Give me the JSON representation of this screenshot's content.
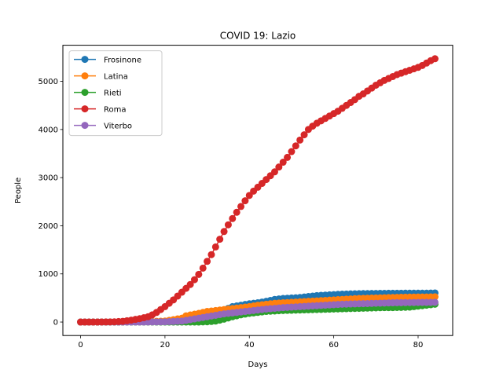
{
  "chart_data": {
    "type": "line",
    "title": "COVID 19: Lazio",
    "xlabel": "Days",
    "ylabel": "People",
    "xlim": [
      -4.2,
      88.2
    ],
    "ylim": [
      -280,
      5750
    ],
    "xticks": [
      0,
      20,
      40,
      60,
      80
    ],
    "yticks": [
      0,
      1000,
      2000,
      3000,
      4000,
      5000
    ],
    "grid": false,
    "legend_position": "top-left",
    "series": [
      {
        "name": "Frosinone",
        "color": "#1f77b4",
        "points": [
          [
            0,
            0
          ],
          [
            5,
            0
          ],
          [
            10,
            2
          ],
          [
            15,
            5
          ],
          [
            20,
            15
          ],
          [
            22,
            40
          ],
          [
            25,
            80
          ],
          [
            28,
            130
          ],
          [
            30,
            170
          ],
          [
            32,
            200
          ],
          [
            34,
            250
          ],
          [
            36,
            320
          ],
          [
            38,
            350
          ],
          [
            40,
            380
          ],
          [
            42,
            400
          ],
          [
            44,
            430
          ],
          [
            46,
            470
          ],
          [
            48,
            490
          ],
          [
            50,
            500
          ],
          [
            52,
            510
          ],
          [
            54,
            530
          ],
          [
            56,
            550
          ],
          [
            58,
            560
          ],
          [
            60,
            570
          ],
          [
            62,
            580
          ],
          [
            64,
            585
          ],
          [
            66,
            590
          ],
          [
            68,
            592
          ],
          [
            70,
            595
          ],
          [
            72,
            597
          ],
          [
            74,
            598
          ],
          [
            76,
            599
          ],
          [
            78,
            600
          ],
          [
            80,
            600
          ],
          [
            82,
            600
          ],
          [
            84,
            605
          ]
        ]
      },
      {
        "name": "Latina",
        "color": "#ff7f0e",
        "points": [
          [
            0,
            0
          ],
          [
            5,
            0
          ],
          [
            10,
            2
          ],
          [
            15,
            5
          ],
          [
            20,
            20
          ],
          [
            22,
            50
          ],
          [
            24,
            80
          ],
          [
            25,
            130
          ],
          [
            28,
            180
          ],
          [
            30,
            220
          ],
          [
            32,
            240
          ],
          [
            34,
            260
          ],
          [
            36,
            280
          ],
          [
            38,
            300
          ],
          [
            40,
            320
          ],
          [
            42,
            350
          ],
          [
            44,
            370
          ],
          [
            46,
            390
          ],
          [
            48,
            400
          ],
          [
            50,
            410
          ],
          [
            52,
            420
          ],
          [
            54,
            430
          ],
          [
            56,
            440
          ],
          [
            58,
            450
          ],
          [
            60,
            460
          ],
          [
            62,
            470
          ],
          [
            64,
            480
          ],
          [
            66,
            490
          ],
          [
            68,
            495
          ],
          [
            70,
            500
          ],
          [
            72,
            505
          ],
          [
            74,
            510
          ],
          [
            76,
            515
          ],
          [
            78,
            518
          ],
          [
            80,
            520
          ],
          [
            82,
            520
          ],
          [
            84,
            525
          ]
        ]
      },
      {
        "name": "Rieti",
        "color": "#2ca02c",
        "points": [
          [
            0,
            0
          ],
          [
            5,
            0
          ],
          [
            10,
            0
          ],
          [
            15,
            0
          ],
          [
            20,
            0
          ],
          [
            25,
            0
          ],
          [
            28,
            0
          ],
          [
            30,
            5
          ],
          [
            32,
            20
          ],
          [
            34,
            60
          ],
          [
            36,
            110
          ],
          [
            38,
            150
          ],
          [
            40,
            180
          ],
          [
            42,
            200
          ],
          [
            44,
            220
          ],
          [
            46,
            230
          ],
          [
            48,
            240
          ],
          [
            50,
            245
          ],
          [
            52,
            250
          ],
          [
            54,
            255
          ],
          [
            56,
            260
          ],
          [
            58,
            265
          ],
          [
            60,
            270
          ],
          [
            62,
            275
          ],
          [
            64,
            280
          ],
          [
            66,
            285
          ],
          [
            68,
            290
          ],
          [
            70,
            295
          ],
          [
            72,
            300
          ],
          [
            74,
            300
          ],
          [
            76,
            305
          ],
          [
            78,
            310
          ],
          [
            80,
            330
          ],
          [
            82,
            350
          ],
          [
            84,
            370
          ]
        ]
      },
      {
        "name": "Roma",
        "color": "#d62728",
        "points": [
          [
            0,
            0
          ],
          [
            2,
            0
          ],
          [
            4,
            0
          ],
          [
            6,
            2
          ],
          [
            8,
            5
          ],
          [
            10,
            15
          ],
          [
            12,
            40
          ],
          [
            14,
            70
          ],
          [
            15,
            90
          ],
          [
            16,
            110
          ],
          [
            17,
            150
          ],
          [
            18,
            200
          ],
          [
            19,
            260
          ],
          [
            20,
            320
          ],
          [
            21,
            390
          ],
          [
            22,
            460
          ],
          [
            23,
            540
          ],
          [
            24,
            620
          ],
          [
            25,
            700
          ],
          [
            26,
            780
          ],
          [
            27,
            880
          ],
          [
            28,
            990
          ],
          [
            29,
            1120
          ],
          [
            30,
            1260
          ],
          [
            31,
            1400
          ],
          [
            32,
            1560
          ],
          [
            33,
            1720
          ],
          [
            34,
            1880
          ],
          [
            35,
            2020
          ],
          [
            36,
            2150
          ],
          [
            37,
            2280
          ],
          [
            38,
            2400
          ],
          [
            39,
            2520
          ],
          [
            40,
            2630
          ],
          [
            41,
            2720
          ],
          [
            42,
            2800
          ],
          [
            43,
            2880
          ],
          [
            44,
            2960
          ],
          [
            45,
            3040
          ],
          [
            46,
            3120
          ],
          [
            47,
            3220
          ],
          [
            48,
            3320
          ],
          [
            49,
            3420
          ],
          [
            50,
            3540
          ],
          [
            51,
            3660
          ],
          [
            52,
            3780
          ],
          [
            53,
            3890
          ],
          [
            54,
            4000
          ],
          [
            55,
            4070
          ],
          [
            56,
            4130
          ],
          [
            57,
            4180
          ],
          [
            58,
            4230
          ],
          [
            59,
            4280
          ],
          [
            60,
            4330
          ],
          [
            61,
            4380
          ],
          [
            62,
            4440
          ],
          [
            63,
            4500
          ],
          [
            64,
            4560
          ],
          [
            65,
            4620
          ],
          [
            66,
            4690
          ],
          [
            67,
            4740
          ],
          [
            68,
            4800
          ],
          [
            69,
            4860
          ],
          [
            70,
            4920
          ],
          [
            71,
            4970
          ],
          [
            72,
            5020
          ],
          [
            73,
            5060
          ],
          [
            74,
            5100
          ],
          [
            75,
            5140
          ],
          [
            76,
            5170
          ],
          [
            77,
            5200
          ],
          [
            78,
            5230
          ],
          [
            79,
            5260
          ],
          [
            80,
            5290
          ],
          [
            81,
            5330
          ],
          [
            82,
            5380
          ],
          [
            83,
            5430
          ],
          [
            84,
            5470
          ]
        ]
      },
      {
        "name": "Viterbo",
        "color": "#9467bd",
        "points": [
          [
            0,
            0
          ],
          [
            5,
            0
          ],
          [
            10,
            0
          ],
          [
            15,
            0
          ],
          [
            20,
            5
          ],
          [
            24,
            20
          ],
          [
            26,
            50
          ],
          [
            28,
            80
          ],
          [
            30,
            110
          ],
          [
            32,
            140
          ],
          [
            34,
            170
          ],
          [
            36,
            190
          ],
          [
            38,
            210
          ],
          [
            40,
            230
          ],
          [
            42,
            250
          ],
          [
            44,
            270
          ],
          [
            46,
            285
          ],
          [
            48,
            300
          ],
          [
            50,
            310
          ],
          [
            52,
            320
          ],
          [
            54,
            330
          ],
          [
            56,
            340
          ],
          [
            58,
            350
          ],
          [
            60,
            360
          ],
          [
            62,
            370
          ],
          [
            64,
            375
          ],
          [
            66,
            380
          ],
          [
            68,
            385
          ],
          [
            70,
            390
          ],
          [
            72,
            395
          ],
          [
            74,
            400
          ],
          [
            76,
            403
          ],
          [
            78,
            405
          ],
          [
            80,
            407
          ],
          [
            82,
            408
          ],
          [
            84,
            410
          ]
        ]
      }
    ]
  }
}
